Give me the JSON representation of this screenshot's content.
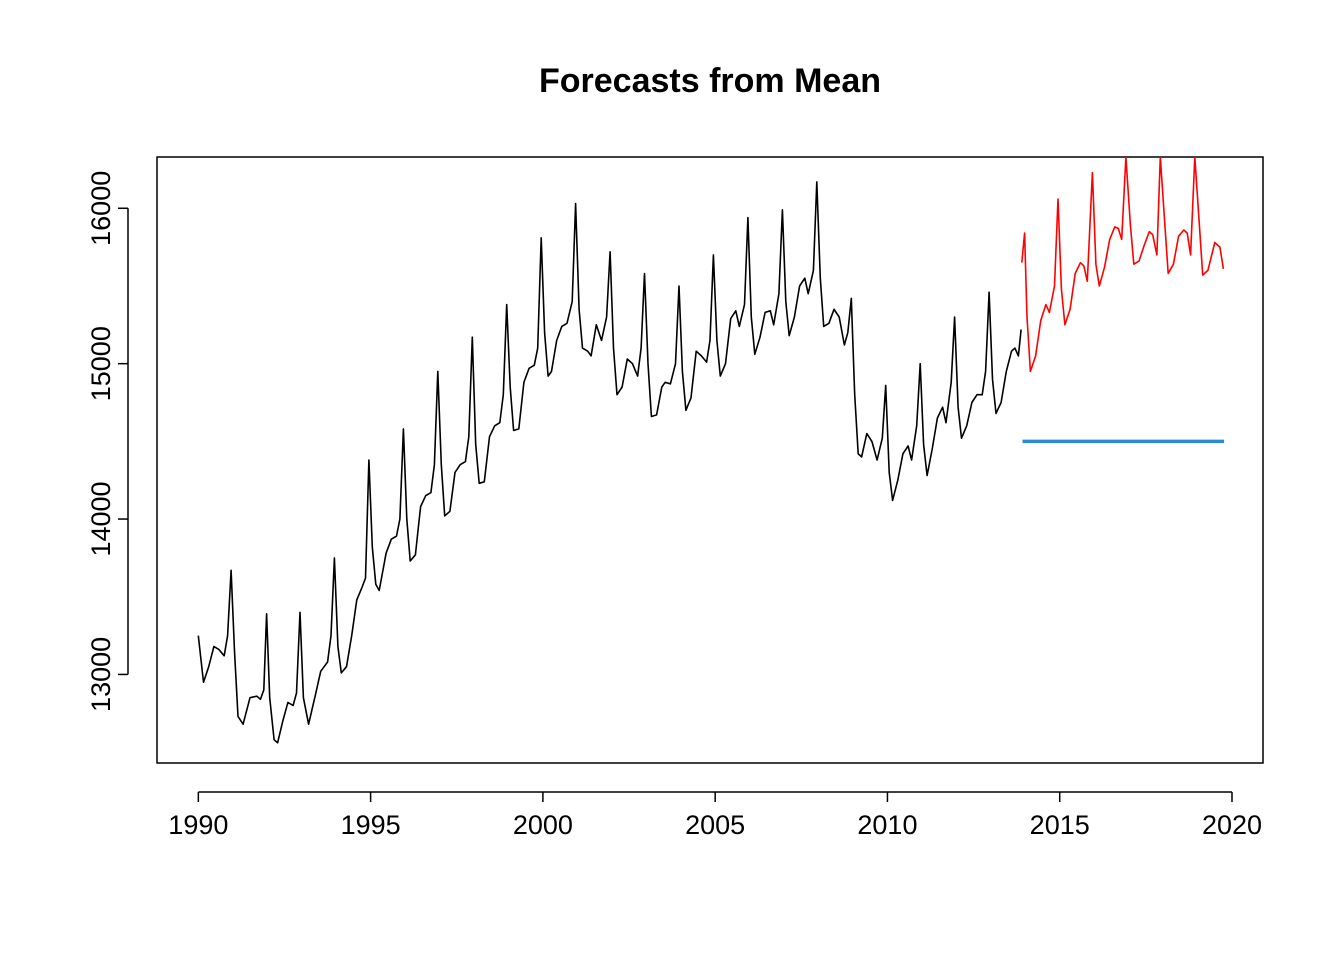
{
  "chart_data": {
    "type": "line",
    "title": "Forecasts from Mean",
    "xlabel": "",
    "ylabel": "",
    "xlim": [
      1988.8,
      2020.9
    ],
    "ylim": [
      12430,
      16330
    ],
    "x_ticks": [
      1990,
      1995,
      2000,
      2005,
      2010,
      2015,
      2020
    ],
    "x_tick_labels": [
      "1990",
      "1995",
      "2000",
      "2005",
      "2010",
      "2015",
      "2020"
    ],
    "y_ticks": [
      13000,
      14000,
      15000,
      16000
    ],
    "y_tick_labels": [
      "13000",
      "14000",
      "15000",
      "16000"
    ],
    "grid": false,
    "legend": "none",
    "series": [
      {
        "role": "observed",
        "color": "#000000",
        "points": [
          [
            1990.0,
            13250
          ],
          [
            1990.15,
            12950
          ],
          [
            1990.3,
            13050
          ],
          [
            1990.45,
            13180
          ],
          [
            1990.6,
            13160
          ],
          [
            1990.75,
            13120
          ],
          [
            1990.85,
            13250
          ],
          [
            1990.95,
            13670
          ],
          [
            1991.05,
            13150
          ],
          [
            1991.15,
            12730
          ],
          [
            1991.3,
            12680
          ],
          [
            1991.5,
            12850
          ],
          [
            1991.7,
            12860
          ],
          [
            1991.8,
            12840
          ],
          [
            1991.9,
            12900
          ],
          [
            1991.98,
            13390
          ],
          [
            1992.07,
            12850
          ],
          [
            1992.2,
            12580
          ],
          [
            1992.3,
            12560
          ],
          [
            1992.45,
            12700
          ],
          [
            1992.6,
            12820
          ],
          [
            1992.75,
            12800
          ],
          [
            1992.85,
            12880
          ],
          [
            1992.95,
            13400
          ],
          [
            1993.05,
            12850
          ],
          [
            1993.2,
            12680
          ],
          [
            1993.4,
            12870
          ],
          [
            1993.55,
            13020
          ],
          [
            1993.75,
            13080
          ],
          [
            1993.85,
            13250
          ],
          [
            1993.95,
            13750
          ],
          [
            1994.05,
            13180
          ],
          [
            1994.15,
            13010
          ],
          [
            1994.3,
            13050
          ],
          [
            1994.45,
            13250
          ],
          [
            1994.6,
            13480
          ],
          [
            1994.75,
            13560
          ],
          [
            1994.85,
            13620
          ],
          [
            1994.95,
            14380
          ],
          [
            1995.05,
            13820
          ],
          [
            1995.15,
            13580
          ],
          [
            1995.25,
            13540
          ],
          [
            1995.45,
            13780
          ],
          [
            1995.6,
            13870
          ],
          [
            1995.75,
            13890
          ],
          [
            1995.85,
            14000
          ],
          [
            1995.95,
            14580
          ],
          [
            1996.05,
            14000
          ],
          [
            1996.15,
            13730
          ],
          [
            1996.3,
            13770
          ],
          [
            1996.45,
            14080
          ],
          [
            1996.6,
            14150
          ],
          [
            1996.75,
            14170
          ],
          [
            1996.85,
            14350
          ],
          [
            1996.95,
            14950
          ],
          [
            1997.05,
            14350
          ],
          [
            1997.15,
            14020
          ],
          [
            1997.3,
            14050
          ],
          [
            1997.45,
            14300
          ],
          [
            1997.6,
            14350
          ],
          [
            1997.75,
            14370
          ],
          [
            1997.85,
            14530
          ],
          [
            1997.95,
            15170
          ],
          [
            1998.05,
            14480
          ],
          [
            1998.15,
            14230
          ],
          [
            1998.3,
            14240
          ],
          [
            1998.45,
            14530
          ],
          [
            1998.6,
            14600
          ],
          [
            1998.75,
            14620
          ],
          [
            1998.85,
            14800
          ],
          [
            1998.95,
            15380
          ],
          [
            1999.05,
            14850
          ],
          [
            1999.15,
            14570
          ],
          [
            1999.3,
            14580
          ],
          [
            1999.45,
            14880
          ],
          [
            1999.6,
            14970
          ],
          [
            1999.75,
            14990
          ],
          [
            1999.85,
            15100
          ],
          [
            1999.95,
            15810
          ],
          [
            2000.05,
            15200
          ],
          [
            2000.15,
            14920
          ],
          [
            2000.25,
            14950
          ],
          [
            2000.4,
            15150
          ],
          [
            2000.55,
            15240
          ],
          [
            2000.7,
            15260
          ],
          [
            2000.85,
            15400
          ],
          [
            2000.95,
            16030
          ],
          [
            2001.05,
            15350
          ],
          [
            2001.15,
            15100
          ],
          [
            2001.3,
            15080
          ],
          [
            2001.4,
            15050
          ],
          [
            2001.55,
            15250
          ],
          [
            2001.7,
            15150
          ],
          [
            2001.85,
            15300
          ],
          [
            2001.95,
            15720
          ],
          [
            2002.05,
            15100
          ],
          [
            2002.15,
            14800
          ],
          [
            2002.3,
            14850
          ],
          [
            2002.45,
            15030
          ],
          [
            2002.6,
            15000
          ],
          [
            2002.75,
            14920
          ],
          [
            2002.85,
            15100
          ],
          [
            2002.95,
            15580
          ],
          [
            2003.05,
            15000
          ],
          [
            2003.15,
            14660
          ],
          [
            2003.3,
            14670
          ],
          [
            2003.45,
            14850
          ],
          [
            2003.55,
            14880
          ],
          [
            2003.7,
            14870
          ],
          [
            2003.85,
            15000
          ],
          [
            2003.95,
            15500
          ],
          [
            2004.05,
            14950
          ],
          [
            2004.15,
            14700
          ],
          [
            2004.3,
            14780
          ],
          [
            2004.45,
            15080
          ],
          [
            2004.6,
            15050
          ],
          [
            2004.75,
            15010
          ],
          [
            2004.85,
            15150
          ],
          [
            2004.95,
            15700
          ],
          [
            2005.05,
            15150
          ],
          [
            2005.15,
            14920
          ],
          [
            2005.3,
            15000
          ],
          [
            2005.45,
            15290
          ],
          [
            2005.6,
            15340
          ],
          [
            2005.7,
            15240
          ],
          [
            2005.85,
            15380
          ],
          [
            2005.95,
            15940
          ],
          [
            2006.05,
            15300
          ],
          [
            2006.15,
            15060
          ],
          [
            2006.3,
            15170
          ],
          [
            2006.45,
            15330
          ],
          [
            2006.6,
            15340
          ],
          [
            2006.7,
            15250
          ],
          [
            2006.85,
            15450
          ],
          [
            2006.95,
            15990
          ],
          [
            2007.05,
            15400
          ],
          [
            2007.15,
            15180
          ],
          [
            2007.3,
            15300
          ],
          [
            2007.45,
            15500
          ],
          [
            2007.6,
            15550
          ],
          [
            2007.7,
            15450
          ],
          [
            2007.85,
            15600
          ],
          [
            2007.95,
            16170
          ],
          [
            2008.05,
            15550
          ],
          [
            2008.15,
            15240
          ],
          [
            2008.3,
            15260
          ],
          [
            2008.45,
            15350
          ],
          [
            2008.6,
            15300
          ],
          [
            2008.75,
            15120
          ],
          [
            2008.85,
            15200
          ],
          [
            2008.95,
            15420
          ],
          [
            2009.05,
            14800
          ],
          [
            2009.15,
            14420
          ],
          [
            2009.25,
            14400
          ],
          [
            2009.4,
            14550
          ],
          [
            2009.55,
            14500
          ],
          [
            2009.7,
            14380
          ],
          [
            2009.85,
            14520
          ],
          [
            2009.95,
            14860
          ],
          [
            2010.05,
            14300
          ],
          [
            2010.15,
            14120
          ],
          [
            2010.3,
            14250
          ],
          [
            2010.45,
            14420
          ],
          [
            2010.6,
            14470
          ],
          [
            2010.7,
            14380
          ],
          [
            2010.85,
            14600
          ],
          [
            2010.95,
            15000
          ],
          [
            2011.05,
            14480
          ],
          [
            2011.15,
            14280
          ],
          [
            2011.3,
            14450
          ],
          [
            2011.45,
            14650
          ],
          [
            2011.6,
            14720
          ],
          [
            2011.7,
            14620
          ],
          [
            2011.85,
            14880
          ],
          [
            2011.95,
            15300
          ],
          [
            2012.05,
            14720
          ],
          [
            2012.15,
            14520
          ],
          [
            2012.3,
            14600
          ],
          [
            2012.45,
            14750
          ],
          [
            2012.6,
            14800
          ],
          [
            2012.75,
            14800
          ],
          [
            2012.85,
            14950
          ],
          [
            2012.95,
            15460
          ],
          [
            2013.05,
            14900
          ],
          [
            2013.15,
            14680
          ],
          [
            2013.3,
            14750
          ],
          [
            2013.45,
            14950
          ],
          [
            2013.6,
            15080
          ],
          [
            2013.7,
            15100
          ],
          [
            2013.8,
            15050
          ],
          [
            2013.88,
            15220
          ]
        ]
      },
      {
        "role": "comparison",
        "color": "#ff0000",
        "points": [
          [
            2013.9,
            15650
          ],
          [
            2013.98,
            15840
          ],
          [
            2014.05,
            15300
          ],
          [
            2014.15,
            14950
          ],
          [
            2014.3,
            15050
          ],
          [
            2014.45,
            15280
          ],
          [
            2014.6,
            15380
          ],
          [
            2014.7,
            15330
          ],
          [
            2014.85,
            15500
          ],
          [
            2014.95,
            16060
          ],
          [
            2015.05,
            15480
          ],
          [
            2015.15,
            15250
          ],
          [
            2015.3,
            15350
          ],
          [
            2015.45,
            15580
          ],
          [
            2015.6,
            15650
          ],
          [
            2015.7,
            15630
          ],
          [
            2015.8,
            15530
          ],
          [
            2015.95,
            16230
          ],
          [
            2016.05,
            15640
          ],
          [
            2016.15,
            15500
          ],
          [
            2016.3,
            15620
          ],
          [
            2016.45,
            15800
          ],
          [
            2016.6,
            15880
          ],
          [
            2016.7,
            15870
          ],
          [
            2016.8,
            15800
          ],
          [
            2016.92,
            16330
          ],
          [
            2017.05,
            15900
          ],
          [
            2017.15,
            15640
          ],
          [
            2017.3,
            15660
          ],
          [
            2017.45,
            15760
          ],
          [
            2017.6,
            15850
          ],
          [
            2017.7,
            15830
          ],
          [
            2017.82,
            15700
          ],
          [
            2017.92,
            16330
          ],
          [
            2018.05,
            15900
          ],
          [
            2018.15,
            15580
          ],
          [
            2018.3,
            15640
          ],
          [
            2018.45,
            15820
          ],
          [
            2018.6,
            15860
          ],
          [
            2018.7,
            15840
          ],
          [
            2018.8,
            15700
          ],
          [
            2018.92,
            16330
          ],
          [
            2019.05,
            15900
          ],
          [
            2019.15,
            15570
          ],
          [
            2019.3,
            15600
          ],
          [
            2019.5,
            15780
          ],
          [
            2019.65,
            15750
          ],
          [
            2019.75,
            15610
          ]
        ]
      },
      {
        "role": "forecast",
        "color": "#2b8ad6",
        "points": [
          [
            2013.92,
            14500
          ],
          [
            2019.77,
            14500
          ]
        ]
      }
    ]
  }
}
